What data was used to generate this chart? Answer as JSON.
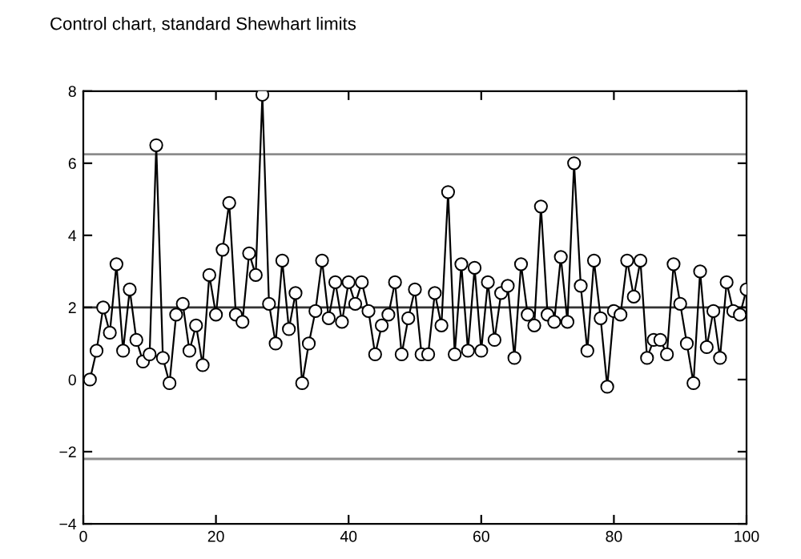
{
  "chart_data": {
    "type": "line",
    "title": "Control chart, standard Shewhart limits",
    "x": [
      1,
      2,
      3,
      4,
      5,
      6,
      7,
      8,
      9,
      10,
      11,
      12,
      13,
      14,
      15,
      16,
      17,
      18,
      19,
      20,
      21,
      22,
      23,
      24,
      25,
      26,
      27,
      28,
      29,
      30,
      31,
      32,
      33,
      34,
      35,
      36,
      37,
      38,
      39,
      40,
      41,
      42,
      43,
      44,
      45,
      46,
      47,
      48,
      49,
      50,
      51,
      52,
      53,
      54,
      55,
      56,
      57,
      58,
      59,
      60,
      61,
      62,
      63,
      64,
      65,
      66,
      67,
      68,
      69,
      70,
      71,
      72,
      73,
      74,
      75,
      76,
      77,
      78,
      79,
      80,
      81,
      82,
      83,
      84,
      85,
      86,
      87,
      88,
      89,
      90,
      91,
      92,
      93,
      94,
      95,
      96,
      97,
      98,
      99,
      100
    ],
    "series": [
      {
        "color": "#000000",
        "values": [
          0.0,
          0.8,
          2.0,
          1.3,
          3.2,
          0.8,
          2.5,
          1.1,
          0.5,
          0.7,
          6.5,
          0.6,
          -0.1,
          1.8,
          2.1,
          0.8,
          1.5,
          0.4,
          2.9,
          1.8,
          3.6,
          4.9,
          1.8,
          1.6,
          3.5,
          2.9,
          7.9,
          2.1,
          1.0,
          3.3,
          1.4,
          2.4,
          -0.1,
          1.0,
          1.9,
          3.3,
          1.7,
          2.7,
          1.6,
          2.7,
          2.1,
          2.7,
          1.9,
          0.7,
          1.5,
          1.8,
          2.7,
          0.7,
          1.7,
          2.5,
          0.7,
          0.7,
          2.4,
          1.5,
          5.2,
          0.7,
          3.2,
          0.8,
          3.1,
          0.8,
          2.7,
          1.1,
          2.4,
          2.6,
          0.6,
          3.2,
          1.8,
          1.5,
          4.8,
          1.8,
          1.6,
          3.4,
          1.6,
          6.0,
          2.6,
          0.8,
          3.3,
          1.7,
          -0.2,
          1.9,
          1.8,
          3.3,
          2.3,
          3.3,
          0.6,
          1.1,
          1.1,
          0.7,
          3.2,
          2.1,
          1.0,
          -0.1,
          3.0,
          0.9,
          1.9,
          0.6,
          2.7,
          1.9,
          1.8,
          2.5
        ]
      }
    ],
    "xlim": [
      0,
      100
    ],
    "xticks": [
      0,
      20,
      40,
      60,
      80,
      100
    ],
    "ylim": [
      -4,
      8
    ],
    "yticks": [
      -4,
      -2,
      0,
      2,
      4,
      6,
      8
    ],
    "marker": "circle",
    "line_style": "solid",
    "grid": false,
    "ref_lines": [
      {
        "axis": "y",
        "value": 6.25,
        "color": "#8c8c8c"
      },
      {
        "axis": "y",
        "value": 2.0,
        "color": "#333333"
      },
      {
        "axis": "y",
        "value": -2.2,
        "color": "#8c8c8c"
      }
    ]
  }
}
